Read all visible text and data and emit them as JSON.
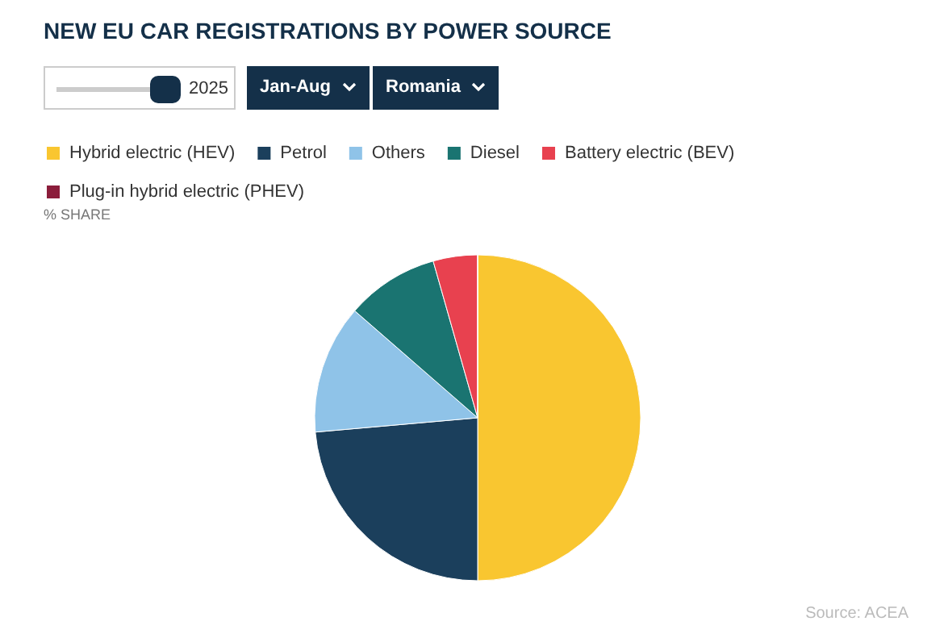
{
  "chart_data": {
    "type": "pie",
    "title": "NEW EU CAR REGISTRATIONS BY POWER SOURCE",
    "subtitle": "% SHARE",
    "categories": [
      "Hybrid electric (HEV)",
      "Petrol",
      "Others",
      "Diesel",
      "Battery electric (BEV)",
      "Plug-in hybrid electric (PHEV)"
    ],
    "values": [
      50,
      23.6,
      12.8,
      9.2,
      4.4,
      0
    ],
    "colors": [
      "#f9c630",
      "#1b3f5c",
      "#8fc3e8",
      "#1a7471",
      "#e8414f",
      "#8b1d3b"
    ],
    "legend": "top left",
    "annotations": [
      "2025",
      "Jan-Aug",
      "Romania",
      "Source: ACEA"
    ]
  }
}
